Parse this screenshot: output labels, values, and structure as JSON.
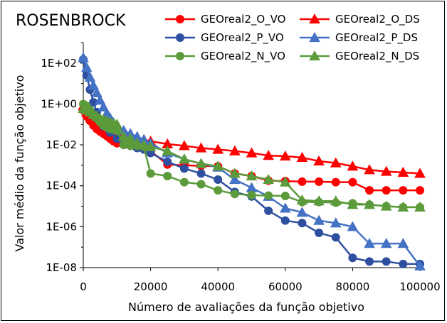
{
  "chart_data": {
    "type": "line",
    "title": "ROSENBROCK",
    "xlabel": "Número de avaliações da função objetivo",
    "ylabel": "Valor médio da função objetivo",
    "y_scale": "log",
    "xlim": [
      0,
      100000
    ],
    "ylim": [
      1e-08,
      1000
    ],
    "x_ticks": [
      0,
      20000,
      40000,
      60000,
      80000,
      100000
    ],
    "x_tick_labels": [
      "0",
      "20000",
      "40000",
      "60000",
      "80000",
      "100000"
    ],
    "y_ticks": [
      1e-08,
      1e-06,
      0.0001,
      0.01,
      1,
      100
    ],
    "y_tick_labels": [
      "1E-08",
      "1E-06",
      "1E-04",
      "1E-02",
      "1E+00",
      "1E+02"
    ],
    "grid": false,
    "legend_position": "top-right",
    "series": [
      {
        "name": "GEOreal2_O_VO",
        "color": "#ff0000",
        "marker": "circle",
        "x": [
          0,
          1000,
          2000,
          3000,
          4000,
          5000,
          6000,
          7000,
          8000,
          9000,
          10000,
          12000,
          14000,
          16000,
          18000,
          20000,
          25000,
          30000,
          35000,
          40000,
          45000,
          50000,
          55000,
          60000,
          65000,
          70000,
          75000,
          80000,
          85000,
          90000,
          95000,
          100000
        ],
        "y": [
          0.5,
          0.25,
          0.15,
          0.09,
          0.06,
          0.045,
          0.035,
          0.027,
          0.02,
          0.015,
          0.012,
          0.01,
          0.009,
          0.0085,
          0.008,
          0.005,
          0.0011,
          0.001,
          0.00095,
          0.0009,
          0.0004,
          0.0003,
          0.00018,
          0.00017,
          0.00016,
          0.00016,
          0.00015,
          0.00015,
          6e-05,
          6e-05,
          6e-05,
          6e-05
        ]
      },
      {
        "name": "GEOreal2_O_DS",
        "color": "#ff0000",
        "marker": "triangle",
        "x": [
          0,
          1000,
          2000,
          3000,
          4000,
          5000,
          6000,
          7000,
          8000,
          9000,
          10000,
          12000,
          14000,
          16000,
          18000,
          20000,
          25000,
          30000,
          35000,
          40000,
          45000,
          50000,
          55000,
          60000,
          65000,
          70000,
          75000,
          80000,
          85000,
          90000,
          95000,
          100000
        ],
        "y": [
          0.8,
          0.4,
          0.25,
          0.17,
          0.12,
          0.09,
          0.07,
          0.055,
          0.045,
          0.04,
          0.035,
          0.03,
          0.025,
          0.02,
          0.018,
          0.015,
          0.011,
          0.009,
          0.007,
          0.006,
          0.005,
          0.004,
          0.003,
          0.0028,
          0.0024,
          0.0016,
          0.0013,
          0.0009,
          0.0006,
          0.0005,
          0.00045,
          0.0004
        ]
      },
      {
        "name": "GEOreal2_P_VO",
        "color": "#2e4fa0",
        "marker": "circle",
        "x": [
          0,
          1000,
          2000,
          3000,
          4000,
          5000,
          6000,
          8000,
          10000,
          12000,
          14000,
          16000,
          18000,
          20000,
          25000,
          30000,
          35000,
          40000,
          45000,
          50000,
          55000,
          60000,
          65000,
          70000,
          75000,
          80000,
          85000,
          90000,
          95000,
          100000
        ],
        "y": [
          150,
          25,
          5,
          1.2,
          0.4,
          0.15,
          0.08,
          0.04,
          0.02,
          0.012,
          0.009,
          0.007,
          0.006,
          0.004,
          0.0015,
          0.0007,
          0.0004,
          0.0002,
          5e-05,
          3e-05,
          6e-06,
          2e-06,
          1.5e-06,
          5e-07,
          3e-07,
          3e-08,
          2e-08,
          2e-08,
          1.5e-08,
          1.5e-08
        ]
      },
      {
        "name": "GEOreal2_P_DS",
        "color": "#4472c4",
        "marker": "triangle",
        "x": [
          0,
          1000,
          2000,
          3000,
          4000,
          5000,
          6000,
          7000,
          8000,
          9000,
          10000,
          12000,
          14000,
          16000,
          18000,
          20000,
          25000,
          30000,
          35000,
          40000,
          45000,
          50000,
          55000,
          60000,
          65000,
          70000,
          75000,
          80000,
          85000,
          90000,
          95000,
          100000
        ],
        "y": [
          180,
          60,
          20,
          8,
          3.5,
          1.5,
          0.7,
          0.35,
          0.2,
          0.12,
          0.08,
          0.05,
          0.035,
          0.025,
          0.018,
          0.012,
          0.004,
          0.002,
          0.0012,
          0.0008,
          0.0002,
          8e-05,
          3e-05,
          8e-06,
          5e-06,
          2e-06,
          1.5e-06,
          1e-06,
          1.5e-07,
          1.5e-07,
          1.5e-07,
          1.2e-08
        ]
      },
      {
        "name": "GEOreal2_N_VO",
        "color": "#5b9b3b",
        "marker": "circle",
        "x": [
          0,
          1000,
          2000,
          3000,
          4000,
          5000,
          6000,
          7000,
          8000,
          9000,
          10000,
          12000,
          14000,
          16000,
          18000,
          20000,
          25000,
          30000,
          35000,
          40000,
          45000,
          50000,
          55000,
          60000,
          65000,
          70000,
          75000,
          80000,
          85000,
          90000,
          95000,
          100000
        ],
        "y": [
          1,
          0.8,
          0.5,
          0.3,
          0.2,
          0.13,
          0.09,
          0.07,
          0.06,
          0.055,
          0.05,
          0.01,
          0.009,
          0.009,
          0.008,
          0.0004,
          0.0003,
          0.00015,
          0.00012,
          6e-05,
          4e-05,
          3.5e-05,
          3.3e-05,
          3.2e-05,
          1.6e-05,
          1.6e-05,
          1.5e-05,
          1.4e-05,
          1.2e-05,
          1e-05,
          9e-06,
          9e-06
        ]
      },
      {
        "name": "GEOreal2_N_DS",
        "color": "#5b9b3b",
        "marker": "triangle",
        "x": [
          0,
          1000,
          2000,
          3000,
          4000,
          5000,
          6000,
          7000,
          8000,
          9000,
          10000,
          12000,
          14000,
          16000,
          18000,
          20000,
          25000,
          30000,
          35000,
          40000,
          45000,
          50000,
          55000,
          60000,
          65000,
          70000,
          75000,
          80000,
          85000,
          90000,
          95000,
          100000
        ],
        "y": [
          0.6,
          0.5,
          0.4,
          0.3,
          0.25,
          0.2,
          0.17,
          0.15,
          0.13,
          0.11,
          0.1,
          0.025,
          0.02,
          0.012,
          0.01,
          0.008,
          0.005,
          0.002,
          0.0012,
          0.0009,
          0.0004,
          0.0003,
          0.0002,
          0.00015,
          2e-05,
          1.8e-05,
          1.8e-05,
          1.2e-05,
          1.2e-05,
          1e-05,
          9e-06,
          9e-06
        ]
      }
    ]
  }
}
